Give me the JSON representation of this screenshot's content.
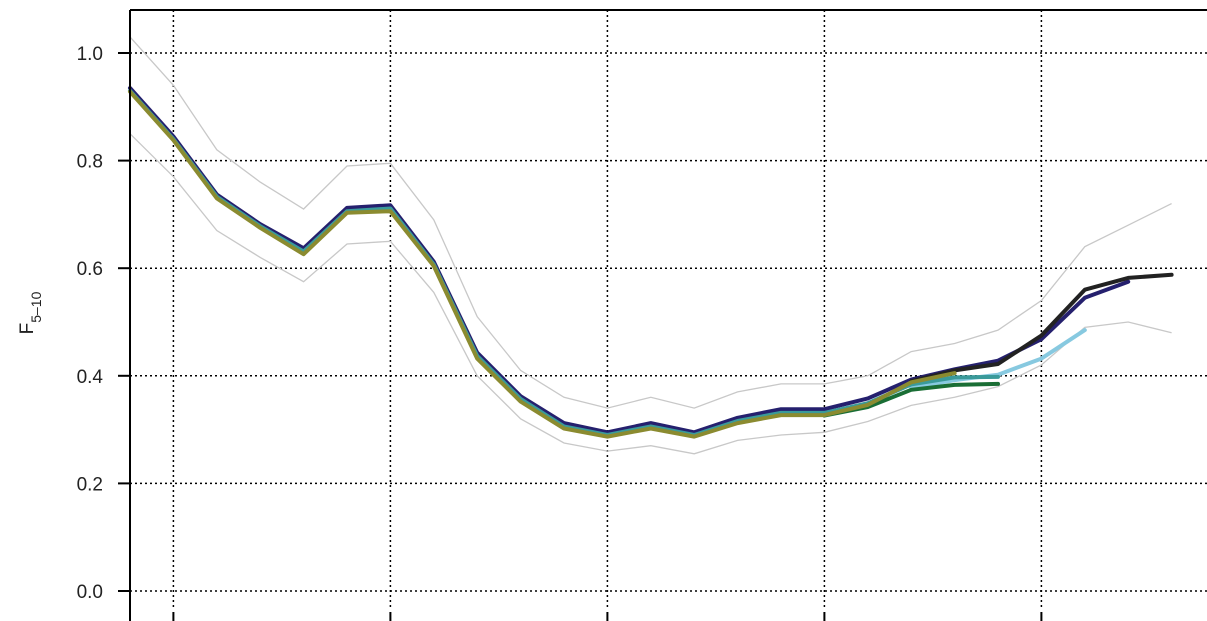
{
  "chart_data": {
    "type": "line",
    "ylabel": "F",
    "ylabel_subscript": "5–10",
    "ylim": [
      0.0,
      1.0
    ],
    "yticks": [
      {
        "value": 0.0,
        "label": "0.0"
      },
      {
        "value": 0.2,
        "label": "0.2"
      },
      {
        "value": 0.4,
        "label": "0.4"
      },
      {
        "value": 0.6,
        "label": "0.6"
      },
      {
        "value": 0.8,
        "label": "0.8"
      },
      {
        "value": 1.0,
        "label": "1.0"
      }
    ],
    "xlim": [
      0,
      24
    ],
    "xgrid": [
      1,
      6,
      11,
      16,
      21
    ],
    "grid": true,
    "bands": [
      {
        "color": "#c8c8c8",
        "x": [
          0,
          1,
          2,
          3,
          4,
          5,
          6,
          7,
          8,
          9,
          10,
          11,
          12,
          13,
          14,
          15,
          16,
          17,
          18,
          19,
          20,
          21,
          22,
          23,
          24
        ],
        "values": [
          1.03,
          0.94,
          0.82,
          0.76,
          0.71,
          0.79,
          0.795,
          0.69,
          0.51,
          0.41,
          0.36,
          0.34,
          0.36,
          0.34,
          0.37,
          0.385,
          0.385,
          0.4,
          0.445,
          0.46,
          0.485,
          0.54,
          0.64,
          0.68,
          0.72
        ]
      },
      {
        "color": "#c8c8c8",
        "x": [
          0,
          1,
          2,
          3,
          4,
          5,
          6,
          7,
          8,
          9,
          10,
          11,
          12,
          13,
          14,
          15,
          16,
          17,
          18,
          19,
          20,
          21,
          22,
          23,
          24
        ],
        "values": [
          0.85,
          0.77,
          0.67,
          0.62,
          0.575,
          0.645,
          0.65,
          0.555,
          0.4,
          0.32,
          0.275,
          0.26,
          0.27,
          0.255,
          0.28,
          0.29,
          0.295,
          0.315,
          0.345,
          0.36,
          0.38,
          0.42,
          0.49,
          0.5,
          0.48
        ]
      }
    ],
    "series": [
      {
        "color": "#25206e",
        "x": [
          0,
          1,
          2,
          3,
          4,
          5,
          6,
          7,
          8,
          9,
          10,
          11,
          12,
          13,
          14,
          15,
          16,
          17,
          18,
          19,
          20,
          21,
          22,
          23
        ],
        "values": [
          0.935,
          0.845,
          0.737,
          0.682,
          0.637,
          0.712,
          0.717,
          0.612,
          0.443,
          0.362,
          0.312,
          0.295,
          0.312,
          0.295,
          0.322,
          0.338,
          0.338,
          0.358,
          0.393,
          0.412,
          0.428,
          0.468,
          0.545,
          0.575
        ]
      },
      {
        "color": "#222222",
        "x": [
          18,
          19,
          20,
          21,
          22,
          23,
          24
        ],
        "values": [
          0.39,
          0.41,
          0.422,
          0.475,
          0.56,
          0.582,
          0.588
        ]
      },
      {
        "color": "#87c9e0",
        "x": [
          18,
          19,
          20,
          21,
          22
        ],
        "values": [
          0.378,
          0.392,
          0.402,
          0.432,
          0.485
        ]
      },
      {
        "color": "#3a9a9a",
        "x": [
          0,
          1,
          2,
          3,
          4,
          5,
          6,
          7,
          8,
          9,
          10,
          11,
          12,
          13,
          14,
          15,
          16,
          17,
          18,
          19,
          20
        ],
        "values": [
          0.93,
          0.84,
          0.733,
          0.678,
          0.631,
          0.706,
          0.711,
          0.607,
          0.437,
          0.357,
          0.306,
          0.29,
          0.306,
          0.29,
          0.316,
          0.331,
          0.331,
          0.349,
          0.384,
          0.397,
          0.398
        ]
      },
      {
        "color": "#1a6e35",
        "x": [
          16,
          17,
          18,
          19,
          20
        ],
        "values": [
          0.326,
          0.342,
          0.374,
          0.383,
          0.385
        ]
      },
      {
        "color": "#8b8b30",
        "x": [
          0,
          1,
          2,
          3,
          4,
          5,
          6,
          7,
          8,
          9,
          10,
          11,
          12,
          13,
          14,
          15,
          16,
          17,
          18,
          19
        ],
        "values": [
          0.928,
          0.838,
          0.73,
          0.675,
          0.626,
          0.703,
          0.706,
          0.604,
          0.432,
          0.352,
          0.302,
          0.287,
          0.302,
          0.287,
          0.312,
          0.327,
          0.327,
          0.346,
          0.388,
          0.405
        ]
      }
    ]
  }
}
